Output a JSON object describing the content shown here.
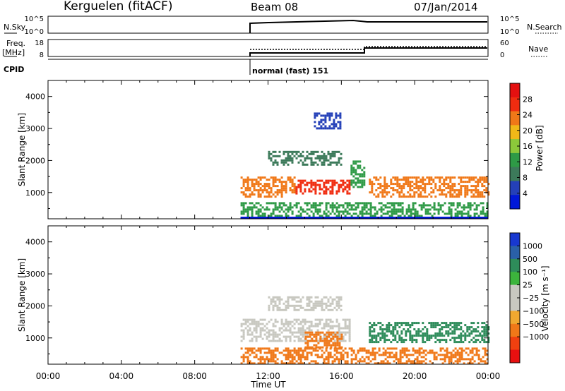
{
  "header": {
    "station": "Kerguelen (fitACF)",
    "beam": "Beam 08",
    "date": "07/Jan/2014"
  },
  "info_panels": {
    "nsky_label": "N.Sky",
    "nsky_ticks": [
      "10^5",
      "10^0"
    ],
    "nsearch_label": "N.Search",
    "nsearch_ticks": [
      "10^5",
      "10^0"
    ],
    "freq_label": "Freq.",
    "freq_unit": "[MHz]",
    "freq_ticks": [
      "18",
      "8"
    ],
    "nave_label": "Nave",
    "nave_ticks": [
      "60",
      "0"
    ],
    "cpid_label": "CPID",
    "cpid_text": "normal (fast) 151"
  },
  "colors": {
    "power_scale": [
      "#0018d8",
      "#2440b8",
      "#3c7a5a",
      "#2e9a46",
      "#8cc83a",
      "#f0b818",
      "#f07818",
      "#f02c10",
      "#e41010"
    ],
    "velocity_scale": [
      "#e81010",
      "#f04010",
      "#f07818",
      "#f0a830",
      "#c8c8c0",
      "#c8c8c0",
      "#3cb43c",
      "#2e8c5a",
      "#2a60a8",
      "#1838d0"
    ]
  },
  "chart_data": [
    {
      "type": "heatmap",
      "title": "Power",
      "xlabel": "",
      "ylabel": "Slant Range [km]",
      "x_ticks": [
        "00:00",
        "04:00",
        "08:00",
        "12:00",
        "16:00",
        "20:00",
        "00:00"
      ],
      "y_ticks": [
        "1000",
        "2000",
        "3000",
        "4000"
      ],
      "ylim": [
        180,
        4500
      ],
      "colorbar_label": "Power [dB]",
      "colorbar_ticks": [
        "4",
        "8",
        "12",
        "16",
        "20",
        "24",
        "28"
      ],
      "colorbar_range": [
        0,
        32
      ],
      "data_start": "10:30",
      "regions": [
        {
          "t": [
            10.5,
            13.5
          ],
          "range": [
            900,
            1500
          ],
          "value": 22
        },
        {
          "t": [
            13.5,
            16.5
          ],
          "range": [
            1000,
            1400
          ],
          "value": 26
        },
        {
          "t": [
            16.5,
            17.2
          ],
          "range": [
            1200,
            2000
          ],
          "value": 14
        },
        {
          "t": [
            17.5,
            24.0
          ],
          "range": [
            900,
            1500
          ],
          "value": 24
        },
        {
          "t": [
            12.0,
            16.0
          ],
          "range": [
            1900,
            2300
          ],
          "value": 8
        },
        {
          "t": [
            14.5,
            16.0
          ],
          "range": [
            3000,
            3500
          ],
          "value": 6
        },
        {
          "t": [
            10.5,
            24.0
          ],
          "range": [
            200,
            700
          ],
          "value": 12
        }
      ]
    },
    {
      "type": "heatmap",
      "title": "Velocity",
      "xlabel": "Time UT",
      "ylabel": "Slant Range [km]",
      "x_ticks": [
        "00:00",
        "04:00",
        "08:00",
        "12:00",
        "16:00",
        "20:00",
        "00:00"
      ],
      "y_ticks": [
        "1000",
        "2000",
        "3000",
        "4000"
      ],
      "ylim": [
        180,
        4500
      ],
      "colorbar_label": "Velocity [m s⁻¹]",
      "colorbar_ticks": [
        "1000",
        "500",
        "100",
        "25",
        "−25",
        "−100",
        "−500",
        "−1000"
      ],
      "data_start": "10:30",
      "regions": [
        {
          "t": [
            10.5,
            16.5
          ],
          "range": [
            900,
            1600
          ],
          "value": 0
        },
        {
          "t": [
            14.0,
            16.0
          ],
          "range": [
            700,
            1200
          ],
          "value": -300
        },
        {
          "t": [
            17.5,
            24.0
          ],
          "range": [
            900,
            1500
          ],
          "value": 400
        },
        {
          "t": [
            12.0,
            16.0
          ],
          "range": [
            1900,
            2300
          ],
          "value": 0
        },
        {
          "t": [
            10.5,
            24.0
          ],
          "range": [
            200,
            700
          ],
          "value": -100
        }
      ]
    }
  ]
}
